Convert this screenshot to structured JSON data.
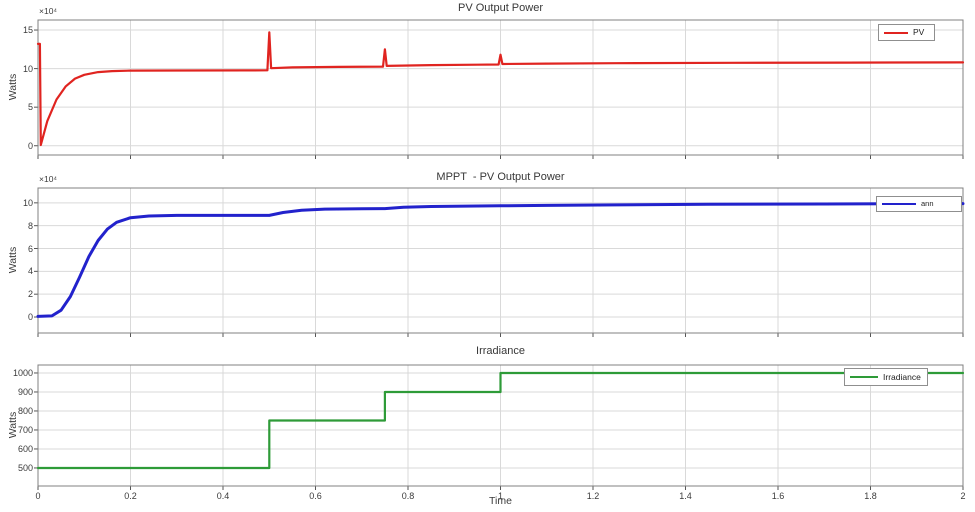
{
  "xlabel": "Time",
  "axis_style": {
    "grid_color": "#d9d9d9",
    "border_color": "#808080",
    "tick_color": "#555555",
    "text_color": "#3b3b3b",
    "background": "#ffffff"
  },
  "chart_data": [
    {
      "type": "line",
      "title": "PV Output Power",
      "ylabel": "Watts",
      "exponent": "×10⁴",
      "xlim": [
        0,
        2
      ],
      "ylim": [
        -1.2,
        16.3
      ],
      "y_ticks": [
        0,
        5,
        10,
        15
      ],
      "x_ticks": [
        0,
        0.2,
        0.4,
        0.6,
        0.8,
        1,
        1.2,
        1.4,
        1.6,
        1.8,
        2
      ],
      "x_tick_labels": null,
      "grid": true,
      "legend": {
        "label": "PV",
        "color": "#e02420",
        "position": "top-right"
      },
      "series": [
        {
          "name": "pv",
          "color": "#e02420",
          "width": 2.2,
          "points": [
            [
              0,
              13.2
            ],
            [
              0.004,
              13.2
            ],
            [
              0.006,
              0.1
            ],
            [
              0.02,
              3.2
            ],
            [
              0.04,
              6.0
            ],
            [
              0.06,
              7.7
            ],
            [
              0.08,
              8.7
            ],
            [
              0.1,
              9.2
            ],
            [
              0.13,
              9.55
            ],
            [
              0.16,
              9.68
            ],
            [
              0.2,
              9.74
            ],
            [
              0.3,
              9.76
            ],
            [
              0.45,
              9.77
            ],
            [
              0.496,
              9.78
            ],
            [
              0.5,
              14.7
            ],
            [
              0.504,
              10.05
            ],
            [
              0.55,
              10.15
            ],
            [
              0.65,
              10.22
            ],
            [
              0.746,
              10.26
            ],
            [
              0.75,
              12.5
            ],
            [
              0.754,
              10.35
            ],
            [
              0.85,
              10.45
            ],
            [
              0.95,
              10.5
            ],
            [
              0.996,
              10.53
            ],
            [
              1.0,
              11.8
            ],
            [
              1.004,
              10.6
            ],
            [
              1.1,
              10.65
            ],
            [
              1.25,
              10.7
            ],
            [
              1.5,
              10.75
            ],
            [
              1.75,
              10.78
            ],
            [
              2,
              10.8
            ]
          ]
        }
      ]
    },
    {
      "type": "line",
      "title": "MPPT  - PV Output Power",
      "ylabel": "Watts",
      "exponent": "×10⁴",
      "xlim": [
        0,
        2
      ],
      "ylim": [
        -1.4,
        11.3
      ],
      "y_ticks": [
        0,
        2,
        4,
        6,
        8,
        10
      ],
      "x_ticks": [
        0,
        0.2,
        0.4,
        0.6,
        0.8,
        1,
        1.2,
        1.4,
        1.6,
        1.8,
        2
      ],
      "x_tick_labels": null,
      "grid": true,
      "legend": {
        "label": "ann",
        "color": "#2222cc",
        "position": "top-right"
      },
      "series": [
        {
          "name": "ann",
          "color": "#2222cc",
          "width": 3,
          "points": [
            [
              0,
              0.05
            ],
            [
              0.03,
              0.1
            ],
            [
              0.05,
              0.6
            ],
            [
              0.07,
              1.8
            ],
            [
              0.09,
              3.5
            ],
            [
              0.11,
              5.3
            ],
            [
              0.13,
              6.7
            ],
            [
              0.15,
              7.7
            ],
            [
              0.17,
              8.3
            ],
            [
              0.2,
              8.7
            ],
            [
              0.24,
              8.85
            ],
            [
              0.3,
              8.9
            ],
            [
              0.4,
              8.9
            ],
            [
              0.5,
              8.9
            ],
            [
              0.53,
              9.15
            ],
            [
              0.57,
              9.35
            ],
            [
              0.62,
              9.45
            ],
            [
              0.7,
              9.48
            ],
            [
              0.75,
              9.5
            ],
            [
              0.79,
              9.62
            ],
            [
              0.85,
              9.68
            ],
            [
              0.95,
              9.72
            ],
            [
              1.0,
              9.74
            ],
            [
              1.1,
              9.78
            ],
            [
              1.25,
              9.82
            ],
            [
              1.45,
              9.87
            ],
            [
              1.7,
              9.9
            ],
            [
              2,
              9.93
            ]
          ]
        }
      ]
    },
    {
      "type": "line",
      "title": "Irradiance",
      "ylabel": "Watts",
      "exponent": null,
      "xlim": [
        0,
        2
      ],
      "ylim": [
        405,
        1042
      ],
      "y_ticks": [
        500,
        600,
        700,
        800,
        900,
        1000
      ],
      "x_ticks": [
        0,
        0.2,
        0.4,
        0.6,
        0.8,
        1,
        1.2,
        1.4,
        1.6,
        1.8,
        2
      ],
      "x_tick_labels": [
        "0",
        "0.2",
        "0.4",
        "0.6",
        "0.8",
        "1",
        "1.2",
        "1.4",
        "1.6",
        "1.8",
        "2"
      ],
      "grid": true,
      "legend": {
        "label": "Irradiance",
        "color": "#2e9b38",
        "position": "top-right"
      },
      "series": [
        {
          "name": "irradiance",
          "color": "#2e9b38",
          "width": 2.2,
          "points": [
            [
              0,
              500
            ],
            [
              0.5,
              500
            ],
            [
              0.5,
              750
            ],
            [
              0.75,
              750
            ],
            [
              0.75,
              900
            ],
            [
              1,
              900
            ],
            [
              1,
              1000
            ],
            [
              2,
              1000
            ]
          ]
        }
      ]
    }
  ]
}
